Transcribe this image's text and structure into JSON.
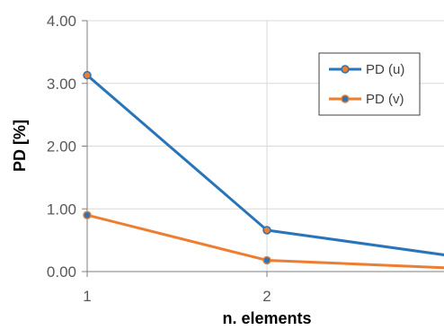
{
  "chart_data": {
    "type": "line",
    "title": "",
    "xlabel": "n. elements",
    "ylabel": "PD [%]",
    "x": [
      1,
      2,
      3
    ],
    "xlim": [
      1,
      3
    ],
    "ylim": [
      0,
      4
    ],
    "x_ticks": [
      "1",
      "2"
    ],
    "y_ticks": [
      "0.00",
      "1.00",
      "2.00",
      "3.00",
      "4.00"
    ],
    "grid": true,
    "legend": "top-right",
    "series": [
      {
        "name": "PD (u)",
        "values": [
          3.13,
          0.66,
          0.26
        ],
        "color": "#2a74b8",
        "marker_color": "#ed7d31"
      },
      {
        "name": "PD (v)",
        "values": [
          0.9,
          0.18,
          0.06
        ],
        "color": "#ed7d31",
        "marker_color": "#2a74b8"
      }
    ]
  }
}
